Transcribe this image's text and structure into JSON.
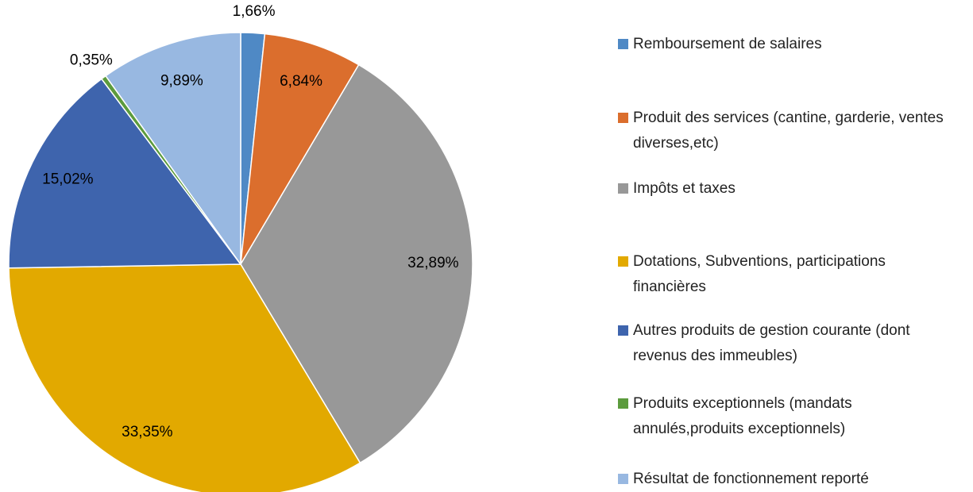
{
  "chart_data": {
    "type": "pie",
    "categories": [
      "Remboursement de salaires",
      "Produit des services (cantine, garderie, ventes diverses,etc)",
      "Impôts et taxes",
      "Dotations, Subventions, participations financières",
      "Autres produits de gestion courante (dont revenus des immeubles)",
      "Produits exceptionnels (mandats annulés,produits exceptionnels)",
      "Résultat de fonctionnement reporté"
    ],
    "values": [
      1.66,
      6.84,
      32.89,
      33.35,
      15.02,
      0.35,
      9.89
    ],
    "value_labels": [
      "1,66%",
      "6,84%",
      "32,89%",
      "33,35%",
      "15,02%",
      "0,35%",
      "9,89%"
    ],
    "colors": [
      "#4f89c5",
      "#db6e2d",
      "#989898",
      "#e2a900",
      "#3e64ad",
      "#5c9b3d",
      "#98b8e1"
    ],
    "legend": "right"
  }
}
